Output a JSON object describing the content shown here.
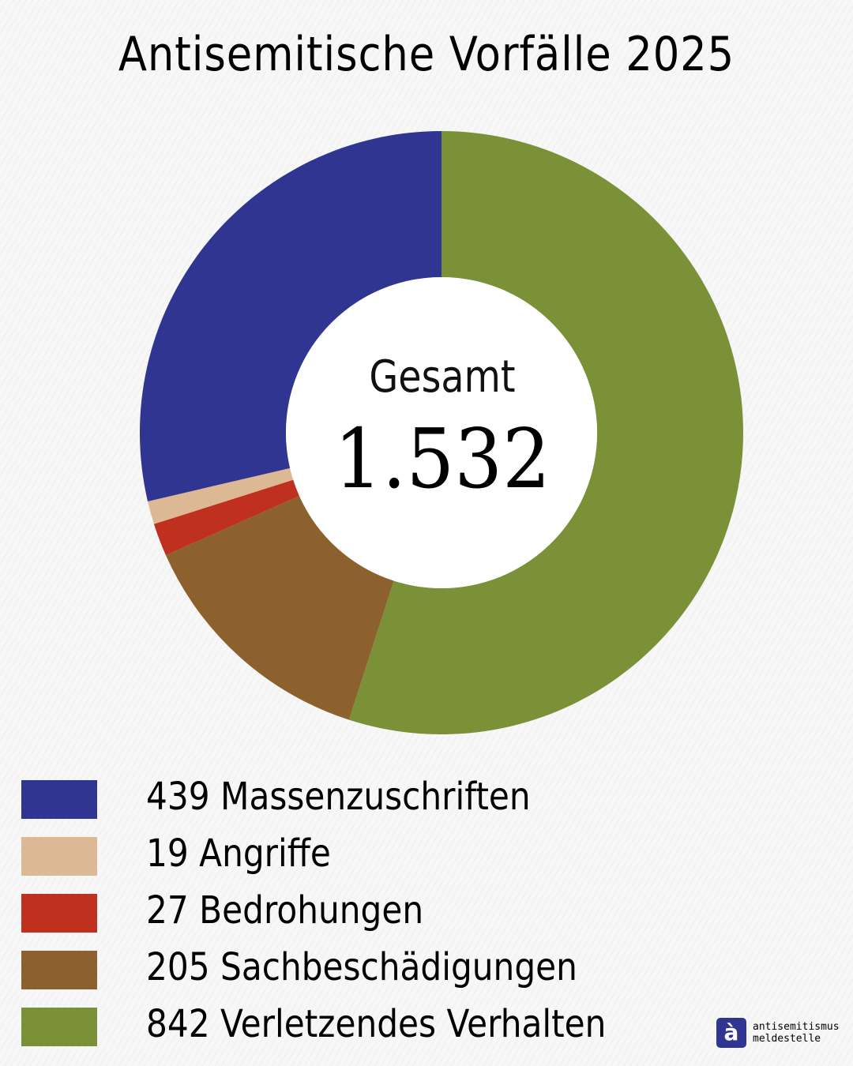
{
  "title": "Antisemitische Vorfälle 2025",
  "center": {
    "label": "Gesamt",
    "value": "1.532"
  },
  "legend": [
    {
      "value": 439,
      "label": "439 Massenzuschriften",
      "color": "#2f3590"
    },
    {
      "value": 19,
      "label": "19 Angriffe",
      "color": "#dcb994"
    },
    {
      "value": 27,
      "label": "27 Bedrohungen",
      "color": "#c0301f"
    },
    {
      "value": 205,
      "label": "205 Sachbeschädigungen",
      "color": "#8c612d"
    },
    {
      "value": 842,
      "label": "842 Verletzendes Verhalten",
      "color": "#7a9138"
    }
  ],
  "logo": {
    "line1": "antisemitismus",
    "line2": "meldestelle",
    "glyph": "à"
  },
  "chart_data": {
    "type": "pie",
    "subtype": "donut",
    "title": "Antisemitische Vorfälle 2025",
    "center_text": "Gesamt 1.532",
    "total": 1532,
    "categories": [
      "Massenzuschriften",
      "Angriffe",
      "Bedrohungen",
      "Sachbeschädigungen",
      "Verletzendes Verhalten"
    ],
    "values": [
      439,
      19,
      27,
      205,
      842
    ],
    "colors": [
      "#2f3590",
      "#dcb994",
      "#c0301f",
      "#8c612d",
      "#7a9138"
    ],
    "draw_order_clockwise_from_top": [
      "Verletzendes Verhalten",
      "Sachbeschädigungen",
      "Bedrohungen",
      "Angriffe",
      "Massenzuschriften"
    ],
    "legend_position": "bottom-left"
  }
}
